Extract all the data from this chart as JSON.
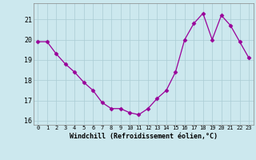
{
  "x": [
    0,
    1,
    2,
    3,
    4,
    5,
    6,
    7,
    8,
    9,
    10,
    11,
    12,
    13,
    14,
    15,
    16,
    17,
    18,
    19,
    20,
    21,
    22,
    23
  ],
  "y": [
    19.9,
    19.9,
    19.3,
    18.8,
    18.4,
    17.9,
    17.5,
    16.9,
    16.6,
    16.6,
    16.4,
    16.3,
    16.6,
    17.1,
    17.5,
    18.4,
    20.0,
    20.8,
    21.3,
    20.0,
    21.2,
    20.7,
    19.9,
    19.1
  ],
  "line_color": "#990099",
  "marker": "D",
  "marker_size": 2.5,
  "bg_color": "#cce8ee",
  "grid_color": "#aaccd4",
  "xlabel": "Windchill (Refroidissement éolien,°C)",
  "ylim": [
    15.8,
    21.8
  ],
  "yticks": [
    16,
    17,
    18,
    19,
    20,
    21
  ],
  "xticks": [
    0,
    1,
    2,
    3,
    4,
    5,
    6,
    7,
    8,
    9,
    10,
    11,
    12,
    13,
    14,
    15,
    16,
    17,
    18,
    19,
    20,
    21,
    22,
    23
  ],
  "xtick_labels": [
    "0",
    "1",
    "2",
    "3",
    "4",
    "5",
    "6",
    "7",
    "8",
    "9",
    "10",
    "11",
    "12",
    "13",
    "14",
    "15",
    "16",
    "17",
    "18",
    "19",
    "20",
    "21",
    "22",
    "23"
  ]
}
